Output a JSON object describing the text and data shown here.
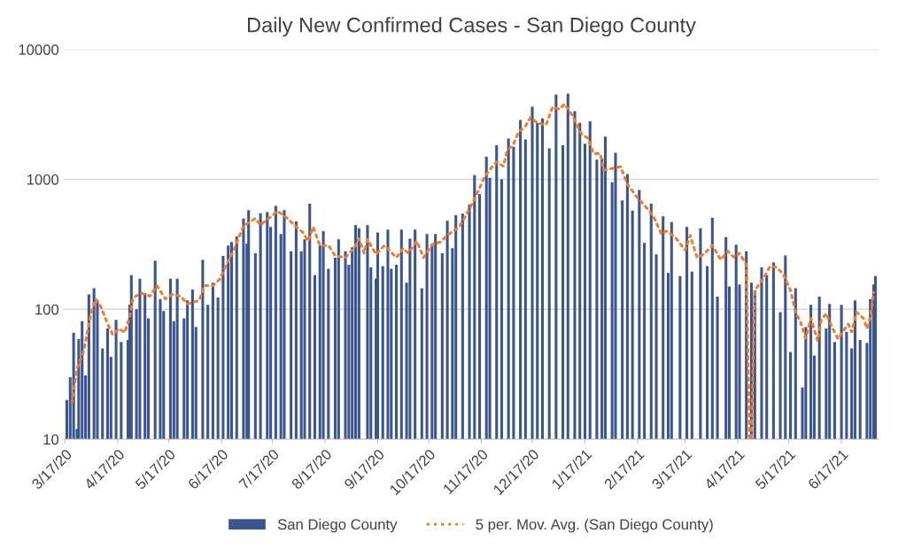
{
  "chart_data": {
    "type": "bar",
    "title": "Daily New Confirmed Cases - San Diego County",
    "log": "y",
    "ylim": [
      10,
      10000
    ],
    "yticks": [
      10,
      100,
      1000,
      10000
    ],
    "grid": "y",
    "legend": "bottom",
    "xlim": [
      "2020-03-16",
      "2021-07-09"
    ],
    "xticks": [
      {
        "value": "2020-03-17",
        "label": "3/17/20"
      },
      {
        "value": "2020-04-17",
        "label": "4/17/20"
      },
      {
        "value": "2020-05-17",
        "label": "5/17/20"
      },
      {
        "value": "2020-06-17",
        "label": "6/17/20"
      },
      {
        "value": "2020-07-17",
        "label": "7/17/20"
      },
      {
        "value": "2020-08-17",
        "label": "8/17/20"
      },
      {
        "value": "2020-09-17",
        "label": "9/17/20"
      },
      {
        "value": "2020-10-17",
        "label": "10/17/20"
      },
      {
        "value": "2020-11-17",
        "label": "11/17/20"
      },
      {
        "value": "2020-12-17",
        "label": "12/17/20"
      },
      {
        "value": "2021-01-17",
        "label": "1/17/21"
      },
      {
        "value": "2021-02-17",
        "label": "2/17/21"
      },
      {
        "value": "2021-03-17",
        "label": "3/17/21"
      },
      {
        "value": "2021-04-17",
        "label": "4/17/21"
      },
      {
        "value": "2021-05-17",
        "label": "5/17/21"
      },
      {
        "value": "2021-06-17",
        "label": "6/17/21"
      }
    ],
    "series": [
      {
        "name": "San Diego County",
        "color": "#3a5590",
        "x": [
          "2020-03-18",
          "2020-03-20",
          "2020-03-22",
          "2020-03-24",
          "2020-03-25",
          "2020-03-27",
          "2020-03-29",
          "2020-03-31",
          "2020-04-03",
          "2020-04-05",
          "2020-04-08",
          "2020-04-11",
          "2020-04-13",
          "2020-04-16",
          "2020-04-19",
          "2020-04-23",
          "2020-04-24",
          "2020-04-25",
          "2020-04-28",
          "2020-04-30",
          "2020-05-03",
          "2020-05-05",
          "2020-05-09",
          "2020-05-12",
          "2020-05-14",
          "2020-05-18",
          "2020-05-20",
          "2020-05-22",
          "2020-05-26",
          "2020-05-28",
          "2020-05-31",
          "2020-06-02",
          "2020-06-06",
          "2020-06-09",
          "2020-06-12",
          "2020-06-15",
          "2020-06-18",
          "2020-06-21",
          "2020-06-23",
          "2020-06-26",
          "2020-06-30",
          "2020-07-02",
          "2020-07-03",
          "2020-07-07",
          "2020-07-10",
          "2020-07-14",
          "2020-07-16",
          "2020-07-19",
          "2020-07-22",
          "2020-07-24",
          "2020-07-28",
          "2020-07-31",
          "2020-08-03",
          "2020-08-05",
          "2020-08-08",
          "2020-08-11",
          "2020-08-14",
          "2020-08-16",
          "2020-08-19",
          "2020-08-23",
          "2020-08-25",
          "2020-08-29",
          "2020-08-31",
          "2020-09-02",
          "2020-09-04",
          "2020-09-06",
          "2020-09-11",
          "2020-09-13",
          "2020-09-16",
          "2020-09-17",
          "2020-09-20",
          "2020-09-23",
          "2020-09-25",
          "2020-09-28",
          "2020-10-01",
          "2020-10-04",
          "2020-10-06",
          "2020-10-09",
          "2020-10-13",
          "2020-10-16",
          "2020-10-19",
          "2020-10-21",
          "2020-10-25",
          "2020-10-28",
          "2020-10-31",
          "2020-11-02",
          "2020-11-06",
          "2020-11-10",
          "2020-11-13",
          "2020-11-16",
          "2020-11-20",
          "2020-11-22",
          "2020-11-26",
          "2020-11-29",
          "2020-12-03",
          "2020-12-06",
          "2020-12-10",
          "2020-12-13",
          "2020-12-17",
          "2020-12-20",
          "2020-12-23",
          "2020-12-27",
          "2020-12-31",
          "2021-01-04",
          "2021-01-07",
          "2021-01-11",
          "2021-01-14",
          "2021-01-17",
          "2021-01-20",
          "2021-01-24",
          "2021-01-27",
          "2021-01-29",
          "2021-02-02",
          "2021-02-04",
          "2021-02-08",
          "2021-02-11",
          "2021-02-14",
          "2021-02-18",
          "2021-02-21",
          "2021-02-25",
          "2021-02-28",
          "2021-03-04",
          "2021-03-07",
          "2021-03-09",
          "2021-03-14",
          "2021-03-18",
          "2021-03-21",
          "2021-03-26",
          "2021-03-30",
          "2021-04-02",
          "2021-04-05",
          "2021-04-10",
          "2021-04-12",
          "2021-04-16",
          "2021-04-18",
          "2021-04-22",
          "2021-04-25",
          "2021-04-27",
          "2021-05-01",
          "2021-05-04",
          "2021-05-08",
          "2021-05-12",
          "2021-05-15",
          "2021-05-18",
          "2021-05-21",
          "2021-05-25",
          "2021-05-27",
          "2021-05-30",
          "2021-06-01",
          "2021-06-04",
          "2021-06-08",
          "2021-06-10",
          "2021-06-13",
          "2021-06-17",
          "2021-06-20",
          "2021-06-23",
          "2021-06-25",
          "2021-06-28",
          "2021-07-02",
          "2021-07-04",
          "2021-07-06",
          "2021-07-07"
        ],
        "values": [
          20,
          30,
          66,
          12,
          59,
          81,
          31,
          130,
          145,
          117,
          50,
          71,
          43,
          83,
          56,
          58,
          108,
          183,
          100,
          172,
          133,
          85,
          236,
          120,
          97,
          172,
          81,
          172,
          85,
          117,
          142,
          73,
          240,
          108,
          160,
          123,
          257,
          310,
          330,
          363,
          500,
          320,
          580,
          270,
          550,
          560,
          430,
          625,
          380,
          580,
          280,
          475,
          280,
          345,
          650,
          183,
          310,
          400,
          205,
          250,
          345,
          280,
          220,
          300,
          445,
          420,
          445,
          210,
          172,
          390,
          215,
          410,
          205,
          220,
          410,
          160,
          350,
          410,
          145,
          380,
          310,
          380,
          270,
          480,
          295,
          530,
          545,
          640,
          1080,
          770,
          1490,
          1030,
          1830,
          1000,
          2060,
          1780,
          2860,
          2030,
          3630,
          2720,
          2940,
          1730,
          4490,
          1830,
          4560,
          3350,
          2720,
          1880,
          2800,
          1420,
          1450,
          2130,
          950,
          1600,
          690,
          1100,
          575,
          830,
          325,
          650,
          265,
          520,
          190,
          470,
          180,
          430,
          195,
          420,
          215,
          505,
          125,
          360,
          150,
          315,
          155,
          280,
          160,
          140,
          210,
          183,
          230,
          95,
          260,
          47,
          145,
          25,
          73,
          108,
          44,
          125,
          71,
          110,
          56,
          108,
          67,
          50,
          117,
          58,
          55,
          120,
          155,
          180
        ]
      },
      {
        "name": "5 per. Mov. Avg. (San Diego County)",
        "type": "line",
        "line_style": "dotted",
        "color": "#ed7d31",
        "x": [
          "2020-03-21",
          "2020-03-24",
          "2020-03-28",
          "2020-04-01",
          "2020-04-04",
          "2020-04-07",
          "2020-04-11",
          "2020-04-14",
          "2020-04-18",
          "2020-04-21",
          "2020-04-24",
          "2020-04-26",
          "2020-05-01",
          "2020-05-06",
          "2020-05-10",
          "2020-05-15",
          "2020-05-19",
          "2020-05-24",
          "2020-05-28",
          "2020-06-04",
          "2020-06-07",
          "2020-06-12",
          "2020-06-16",
          "2020-06-21",
          "2020-06-24",
          "2020-06-30",
          "2020-07-07",
          "2020-07-10",
          "2020-07-16",
          "2020-07-20",
          "2020-07-26",
          "2020-07-31",
          "2020-08-04",
          "2020-08-07",
          "2020-08-10",
          "2020-08-14",
          "2020-08-19",
          "2020-08-23",
          "2020-08-29",
          "2020-09-03",
          "2020-09-06",
          "2020-09-09",
          "2020-09-11",
          "2020-09-16",
          "2020-09-21",
          "2020-09-28",
          "2020-10-02",
          "2020-10-05",
          "2020-10-10",
          "2020-10-14",
          "2020-10-19",
          "2020-10-24",
          "2020-10-29",
          "2020-11-04",
          "2020-11-08",
          "2020-11-12",
          "2020-11-16",
          "2020-11-19",
          "2020-11-23",
          "2020-11-26",
          "2020-11-30",
          "2020-12-02",
          "2020-12-06",
          "2020-12-09",
          "2020-12-13",
          "2020-12-16",
          "2020-12-20",
          "2020-12-25",
          "2020-12-29",
          "2021-01-02",
          "2021-01-05",
          "2021-01-09",
          "2021-01-12",
          "2021-01-15",
          "2021-01-19",
          "2021-01-22",
          "2021-01-26",
          "2021-01-28",
          "2021-02-07",
          "2021-02-11",
          "2021-02-17",
          "2021-02-22",
          "2021-02-26",
          "2021-03-03",
          "2021-03-06",
          "2021-03-11",
          "2021-03-17",
          "2021-03-20",
          "2021-03-24",
          "2021-03-28",
          "2021-04-02",
          "2021-04-07",
          "2021-04-11",
          "2021-04-15",
          "2021-04-18",
          "2021-04-22",
          "2021-04-23",
          "2021-04-24",
          "2021-04-25",
          "2021-04-26",
          "2021-04-27",
          "2021-05-02",
          "2021-05-06",
          "2021-05-10",
          "2021-05-14",
          "2021-05-18",
          "2021-05-21",
          "2021-05-24",
          "2021-05-27",
          "2021-05-30",
          "2021-06-03",
          "2021-06-05",
          "2021-06-08",
          "2021-06-11",
          "2021-06-15",
          "2021-06-19",
          "2021-06-21",
          "2021-06-23",
          "2021-06-26",
          "2021-06-30",
          "2021-07-02",
          "2021-07-04",
          "2021-07-06"
        ],
        "values": [
          19,
          35,
          48,
          90,
          120,
          105,
          77,
          64,
          71,
          66,
          87,
          123,
          133,
          126,
          152,
          120,
          130,
          126,
          110,
          117,
          152,
          152,
          170,
          235,
          280,
          438,
          500,
          445,
          515,
          570,
          500,
          430,
          390,
          335,
          430,
          310,
          310,
          258,
          250,
          295,
          350,
          270,
          345,
          265,
          310,
          250,
          295,
          270,
          335,
          250,
          315,
          330,
          380,
          430,
          530,
          665,
          860,
          1050,
          1230,
          1360,
          1260,
          1630,
          1880,
          2320,
          2570,
          3000,
          2720,
          2620,
          3600,
          3460,
          3800,
          3200,
          2680,
          2240,
          2060,
          1580,
          1580,
          1180,
          1250,
          915,
          720,
          610,
          530,
          380,
          400,
          360,
          285,
          370,
          250,
          265,
          310,
          240,
          280,
          250,
          270,
          220,
          40,
          10,
          10,
          40,
          140,
          172,
          215,
          210,
          183,
          140,
          95,
          79,
          60,
          85,
          57,
          82,
          93,
          75,
          59,
          71,
          77,
          67,
          95,
          85,
          71,
          87,
          135
        ]
      }
    ]
  }
}
